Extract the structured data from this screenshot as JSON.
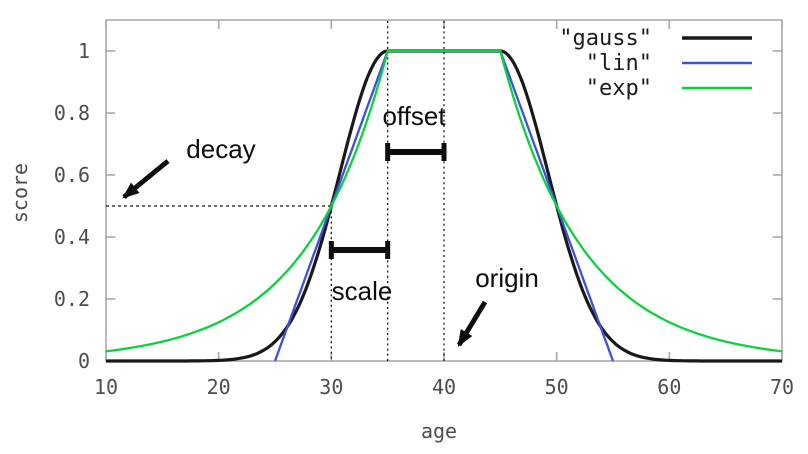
{
  "chart_data": {
    "type": "line",
    "title": "",
    "xlabel": "age",
    "ylabel": "score",
    "xlim": [
      10,
      70
    ],
    "ylim": [
      0,
      1.1
    ],
    "x_ticks": [
      "10",
      "20",
      "30",
      "40",
      "50",
      "60",
      "70"
    ],
    "x_tick_values": [
      10,
      20,
      30,
      40,
      50,
      60,
      70
    ],
    "y_ticks": [
      "0",
      "0.2",
      "0.4",
      "0.6",
      "0.8",
      "1"
    ],
    "y_tick_values": [
      0,
      0.2,
      0.4,
      0.6,
      0.8,
      1
    ],
    "grid": false,
    "legend_position": "top-right-inside",
    "frame_color": "#a9a9a9",
    "dashed_line_color": "#161616",
    "annotation_color": "#0d0d0d",
    "series": [
      {
        "name": "\"gauss\"",
        "function": "gauss",
        "color": "#191919",
        "line_width": 3.2
      },
      {
        "name": "\"lin\"",
        "function": "linear",
        "color": "#3c52dd",
        "line_width": 2.3
      },
      {
        "name": "\"exp\"",
        "function": "exp",
        "color": "#0bd23c",
        "line_width": 2.3
      }
    ],
    "decay_params": {
      "origin": 40,
      "offset": 5,
      "scale": 5,
      "decay": 0.5
    },
    "key_points": {
      "plateau_x_range": [
        35,
        45
      ],
      "plateau_score": 1,
      "half_score_crossings": [
        [
          30,
          0.5
        ],
        [
          50,
          0.5
        ]
      ],
      "lin_zero_x": [
        25,
        55
      ],
      "exp_edge_score": 0.031
    },
    "annotations": {
      "decay": {
        "label": "decay",
        "line_y": 0.5,
        "line_x_range": [
          10,
          30
        ]
      },
      "scale": {
        "label": "scale",
        "x_range": [
          30,
          35
        ]
      },
      "offset": {
        "label": "offset",
        "x_range": [
          35,
          40
        ]
      },
      "origin": {
        "label": "origin",
        "x": 40
      }
    }
  }
}
